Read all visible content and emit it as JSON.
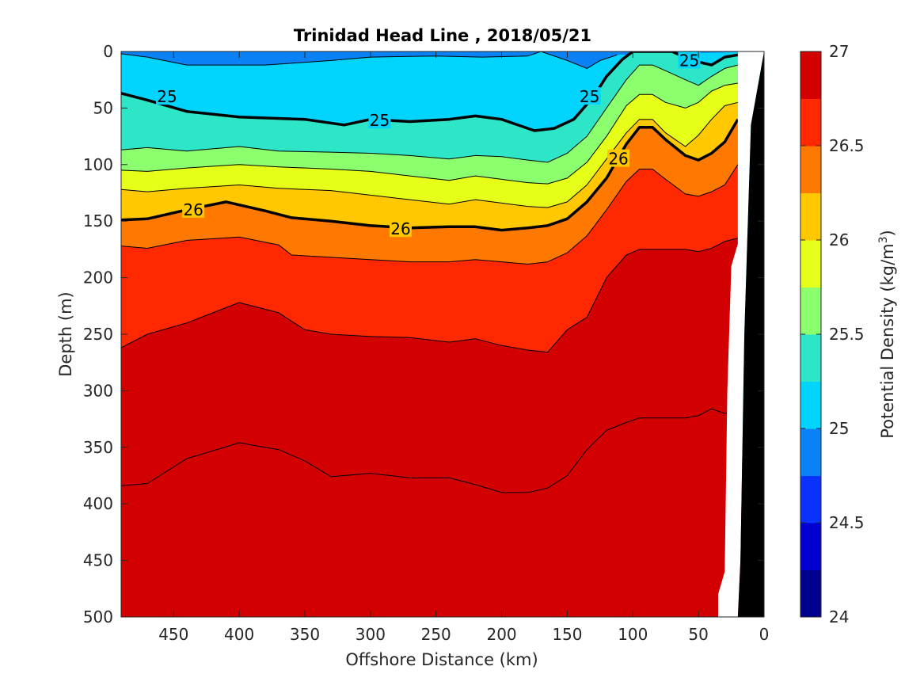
{
  "chart_data": {
    "type": "contour",
    "title": "Trinidad Head Line , 2018/05/21",
    "xlabel": "Offshore Distance (km)",
    "ylabel": "Depth (m)",
    "xlim": [
      490,
      0
    ],
    "ylim": [
      0,
      500
    ],
    "x_ticks": [
      "450",
      "400",
      "350",
      "300",
      "250",
      "200",
      "150",
      "100",
      "50",
      "0"
    ],
    "y_ticks": [
      "0",
      "50",
      "100",
      "150",
      "200",
      "250",
      "300",
      "350",
      "400",
      "450",
      "500"
    ],
    "x_reversed": true,
    "y_reversed": true,
    "colorbar": {
      "label_main": "Potential Density (kg/m",
      "label_sup": "3",
      "label_close": ")",
      "range": [
        24,
        27
      ],
      "step": 0.25,
      "ticks": [
        "24",
        "24.5",
        "25",
        "25.5",
        "26",
        "26.5",
        "27"
      ],
      "colors": [
        "#00008f",
        "#0000d1",
        "#0a32ff",
        "#0a82f5",
        "#00d4ff",
        "#2de6c8",
        "#8cff6e",
        "#e6ff19",
        "#ffc800",
        "#ff7800",
        "#ff2800",
        "#d20000"
      ]
    },
    "contour_labels": [
      {
        "text": "25",
        "x": 455,
        "depth": 40
      },
      {
        "text": "25",
        "x": 293,
        "depth": 61
      },
      {
        "text": "25",
        "x": 133,
        "depth": 40
      },
      {
        "text": "25",
        "x": 57,
        "depth": 8
      },
      {
        "text": "26",
        "x": 435,
        "depth": 140
      },
      {
        "text": "26",
        "x": 277,
        "depth": 157
      },
      {
        "text": "26",
        "x": 111,
        "depth": 95
      }
    ],
    "isolines": [
      {
        "level": 24.75,
        "points": [
          [
            490,
            2
          ],
          [
            470,
            5
          ],
          [
            440,
            12
          ],
          [
            380,
            12
          ],
          [
            330,
            8
          ],
          [
            300,
            5
          ],
          [
            250,
            4
          ],
          [
            215,
            5
          ],
          [
            180,
            4
          ],
          [
            170,
            0
          ],
          [
            150,
            8
          ],
          [
            135,
            15
          ],
          [
            125,
            8
          ],
          [
            112,
            3
          ]
        ]
      },
      {
        "level": 25.0,
        "points": [
          [
            490,
            37
          ],
          [
            470,
            43
          ],
          [
            440,
            53
          ],
          [
            400,
            58
          ],
          [
            350,
            60
          ],
          [
            320,
            65
          ],
          [
            300,
            60
          ],
          [
            270,
            62
          ],
          [
            240,
            60
          ],
          [
            220,
            57
          ],
          [
            200,
            60
          ],
          [
            175,
            70
          ],
          [
            160,
            68
          ],
          [
            145,
            60
          ],
          [
            130,
            40
          ],
          [
            120,
            22
          ],
          [
            108,
            7
          ],
          [
            100,
            0
          ],
          [
            70,
            0
          ],
          [
            55,
            8
          ],
          [
            40,
            12
          ],
          [
            30,
            5
          ],
          [
            20,
            3
          ]
        ]
      },
      {
        "level": 25.25,
        "points": [
          [
            490,
            87
          ],
          [
            470,
            85
          ],
          [
            440,
            88
          ],
          [
            400,
            84
          ],
          [
            370,
            88
          ],
          [
            330,
            89
          ],
          [
            300,
            90
          ],
          [
            270,
            92
          ],
          [
            240,
            95
          ],
          [
            220,
            92
          ],
          [
            200,
            93
          ],
          [
            180,
            96
          ],
          [
            165,
            98
          ],
          [
            150,
            90
          ],
          [
            135,
            75
          ],
          [
            120,
            50
          ],
          [
            105,
            25
          ],
          [
            95,
            12
          ],
          [
            85,
            12
          ],
          [
            75,
            17
          ],
          [
            60,
            25
          ],
          [
            50,
            30
          ],
          [
            40,
            22
          ],
          [
            30,
            15
          ],
          [
            20,
            12
          ]
        ]
      },
      {
        "level": 25.5,
        "points": [
          [
            490,
            105
          ],
          [
            470,
            106
          ],
          [
            440,
            103
          ],
          [
            400,
            100
          ],
          [
            370,
            102
          ],
          [
            330,
            104
          ],
          [
            300,
            106
          ],
          [
            270,
            110
          ],
          [
            240,
            114
          ],
          [
            220,
            110
          ],
          [
            200,
            113
          ],
          [
            180,
            116
          ],
          [
            165,
            117
          ],
          [
            150,
            112
          ],
          [
            135,
            98
          ],
          [
            120,
            75
          ],
          [
            105,
            48
          ],
          [
            95,
            38
          ],
          [
            85,
            38
          ],
          [
            75,
            45
          ],
          [
            60,
            50
          ],
          [
            50,
            45
          ],
          [
            40,
            35
          ],
          [
            30,
            30
          ],
          [
            20,
            28
          ]
        ]
      },
      {
        "level": 25.75,
        "points": [
          [
            490,
            122
          ],
          [
            470,
            124
          ],
          [
            440,
            121
          ],
          [
            400,
            118
          ],
          [
            370,
            121
          ],
          [
            330,
            123
          ],
          [
            300,
            127
          ],
          [
            270,
            131
          ],
          [
            240,
            135
          ],
          [
            220,
            131
          ],
          [
            200,
            134
          ],
          [
            180,
            137
          ],
          [
            165,
            138
          ],
          [
            150,
            133
          ],
          [
            135,
            118
          ],
          [
            120,
            95
          ],
          [
            105,
            72
          ],
          [
            95,
            60
          ],
          [
            85,
            60
          ],
          [
            75,
            72
          ],
          [
            60,
            84
          ],
          [
            50,
            74
          ],
          [
            40,
            60
          ],
          [
            30,
            48
          ],
          [
            20,
            45
          ]
        ]
      },
      {
        "level": 26.0,
        "points": [
          [
            490,
            149
          ],
          [
            470,
            148
          ],
          [
            440,
            140
          ],
          [
            410,
            133
          ],
          [
            380,
            141
          ],
          [
            360,
            147
          ],
          [
            330,
            150
          ],
          [
            300,
            154
          ],
          [
            270,
            156
          ],
          [
            240,
            155
          ],
          [
            220,
            155
          ],
          [
            200,
            158
          ],
          [
            180,
            156
          ],
          [
            165,
            154
          ],
          [
            150,
            148
          ],
          [
            135,
            133
          ],
          [
            120,
            112
          ],
          [
            105,
            82
          ],
          [
            95,
            67
          ],
          [
            85,
            67
          ],
          [
            75,
            78
          ],
          [
            60,
            92
          ],
          [
            50,
            96
          ],
          [
            40,
            90
          ],
          [
            30,
            80
          ],
          [
            20,
            60
          ]
        ]
      },
      {
        "level": 26.25,
        "points": [
          [
            490,
            172
          ],
          [
            470,
            174
          ],
          [
            440,
            167
          ],
          [
            400,
            164
          ],
          [
            370,
            171
          ],
          [
            360,
            180
          ],
          [
            330,
            182
          ],
          [
            300,
            184
          ],
          [
            270,
            186
          ],
          [
            240,
            186
          ],
          [
            220,
            184
          ],
          [
            200,
            186
          ],
          [
            180,
            188
          ],
          [
            165,
            186
          ],
          [
            150,
            178
          ],
          [
            135,
            163
          ],
          [
            120,
            140
          ],
          [
            105,
            115
          ],
          [
            95,
            104
          ],
          [
            85,
            104
          ],
          [
            75,
            113
          ],
          [
            60,
            126
          ],
          [
            50,
            128
          ],
          [
            40,
            124
          ],
          [
            30,
            118
          ],
          [
            20,
            100
          ]
        ]
      },
      {
        "level": 26.5,
        "points": [
          [
            490,
            262
          ],
          [
            470,
            250
          ],
          [
            440,
            240
          ],
          [
            400,
            222
          ],
          [
            370,
            231
          ],
          [
            350,
            246
          ],
          [
            330,
            250
          ],
          [
            300,
            252
          ],
          [
            270,
            253
          ],
          [
            240,
            257
          ],
          [
            220,
            254
          ],
          [
            200,
            260
          ],
          [
            180,
            264
          ],
          [
            165,
            266
          ],
          [
            150,
            246
          ],
          [
            135,
            235
          ],
          [
            120,
            200
          ],
          [
            105,
            180
          ],
          [
            95,
            175
          ],
          [
            85,
            175
          ],
          [
            75,
            175
          ],
          [
            60,
            175
          ],
          [
            50,
            177
          ],
          [
            40,
            174
          ],
          [
            30,
            168
          ],
          [
            20,
            165
          ]
        ]
      },
      {
        "level": 26.75,
        "points": [
          [
            490,
            384
          ],
          [
            470,
            382
          ],
          [
            440,
            360
          ],
          [
            400,
            346
          ],
          [
            370,
            352
          ],
          [
            350,
            362
          ],
          [
            330,
            376
          ],
          [
            300,
            373
          ],
          [
            270,
            377
          ],
          [
            240,
            377
          ],
          [
            220,
            383
          ],
          [
            200,
            390
          ],
          [
            180,
            390
          ],
          [
            165,
            386
          ],
          [
            150,
            375
          ],
          [
            135,
            352
          ],
          [
            120,
            335
          ],
          [
            105,
            328
          ],
          [
            95,
            324
          ],
          [
            85,
            324
          ],
          [
            75,
            324
          ],
          [
            60,
            324
          ],
          [
            50,
            322
          ],
          [
            40,
            316
          ],
          [
            30,
            320
          ],
          [
            20,
            318
          ]
        ]
      }
    ],
    "coast": {
      "black_wedge": [
        [
          20,
          500
        ],
        [
          0,
          500
        ],
        [
          0,
          0
        ],
        [
          10,
          65
        ],
        [
          15,
          250
        ],
        [
          18,
          450
        ]
      ],
      "white_gap": [
        [
          35,
          500
        ],
        [
          20,
          500
        ],
        [
          18,
          450
        ],
        [
          15,
          250
        ],
        [
          10,
          65
        ],
        [
          0,
          0
        ],
        [
          20,
          0
        ],
        [
          20,
          170
        ],
        [
          25,
          190
        ],
        [
          28,
          300
        ],
        [
          30,
          460
        ],
        [
          35,
          480
        ]
      ]
    }
  }
}
